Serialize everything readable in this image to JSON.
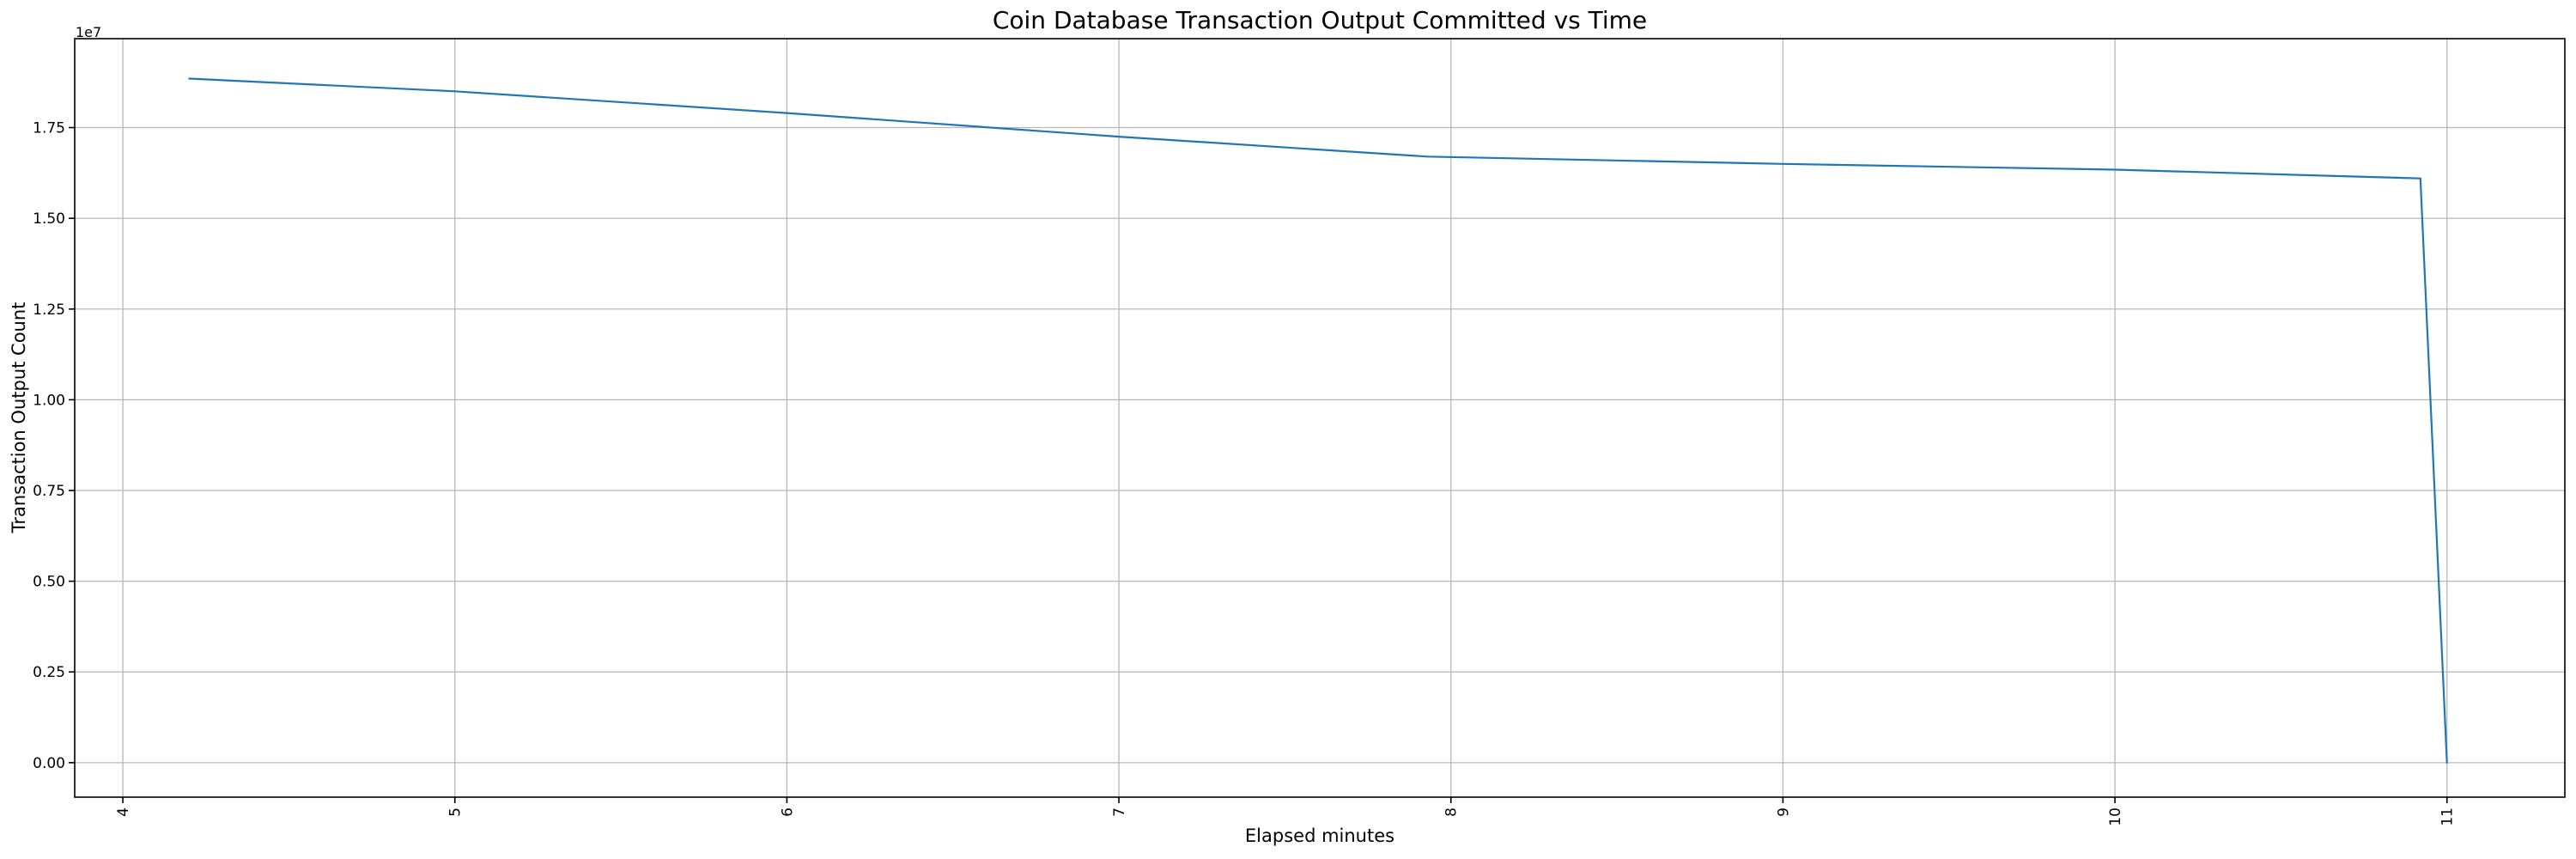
{
  "chart_data": {
    "type": "line",
    "title": "Coin Database Transaction Output Committed vs Time",
    "xlabel": "Elapsed minutes",
    "ylabel": "Transaction Output Count",
    "y_offset_label": "1e7",
    "xlim": [
      3.855,
      11.355
    ],
    "ylim": [
      -950000,
      19950000
    ],
    "x_ticks": [
      4,
      5,
      6,
      7,
      8,
      9,
      10,
      11
    ],
    "y_ticks": [
      {
        "value": 0,
        "label": "0.00"
      },
      {
        "value": 2500000,
        "label": "0.25"
      },
      {
        "value": 5000000,
        "label": "0.50"
      },
      {
        "value": 7500000,
        "label": "0.75"
      },
      {
        "value": 10000000,
        "label": "1.00"
      },
      {
        "value": 12500000,
        "label": "1.25"
      },
      {
        "value": 15000000,
        "label": "1.50"
      },
      {
        "value": 17500000,
        "label": "1.75"
      }
    ],
    "grid": true,
    "legend": false,
    "x_tick_rotation_deg": 90,
    "series": [
      {
        "color": "#1f77b4",
        "points": [
          {
            "x": 4.2,
            "y": 18850000
          },
          {
            "x": 5.0,
            "y": 18500000
          },
          {
            "x": 6.0,
            "y": 17900000
          },
          {
            "x": 7.0,
            "y": 17250000
          },
          {
            "x": 7.93,
            "y": 16700000
          },
          {
            "x": 9.0,
            "y": 16500000
          },
          {
            "x": 10.0,
            "y": 16340000
          },
          {
            "x": 10.92,
            "y": 16100000
          },
          {
            "x": 11.0,
            "y": 0
          }
        ]
      }
    ],
    "colors": {
      "grid": "#b8b8b8",
      "spine": "#000000",
      "background": "#ffffff"
    }
  }
}
